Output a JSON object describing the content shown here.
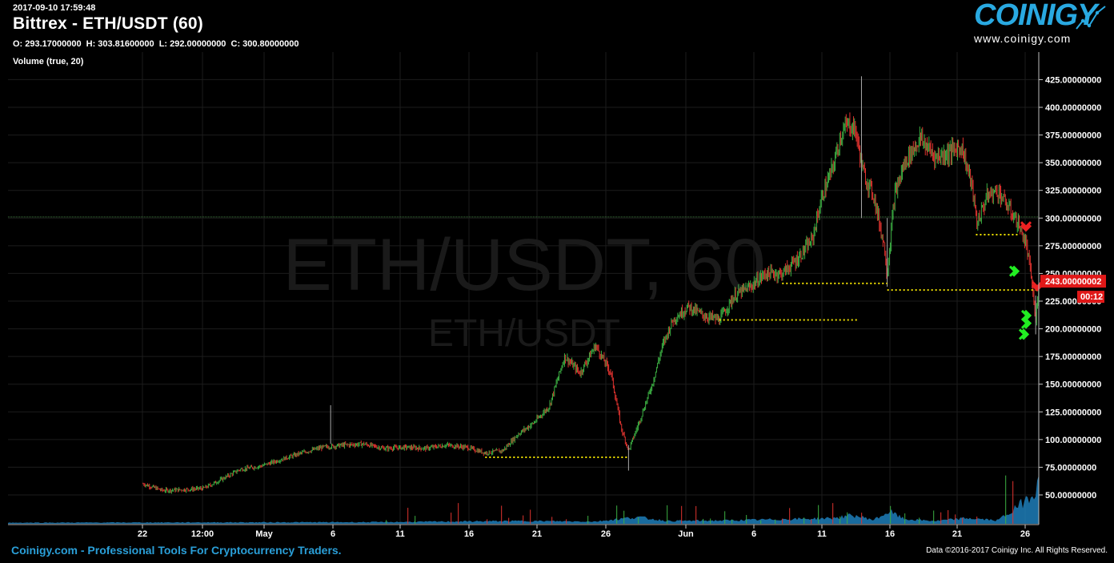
{
  "header": {
    "timestamp": "2017-09-10 17:59:48",
    "title": "Bittrex - ETH/USDT (60)",
    "ohlc": {
      "o_label": "O:",
      "o": "293.17000000",
      "h_label": "H:",
      "h": "303.81600000",
      "l_label": "L:",
      "l": "292.00000000",
      "c_label": "C:",
      "c": "300.80000000"
    },
    "indicator": "Volume (true, 20)"
  },
  "logo": {
    "word": "COINIGY",
    "url": "www.coinigy.com"
  },
  "watermark": {
    "main": "ETH/USDT, 60",
    "sub": "ETH/USDT"
  },
  "footer": {
    "left": "Coinigy.com - Professional Tools For Cryptocurrency Traders.",
    "right": "Data ©2016-2017 Coinigy Inc. All Rights Reserved."
  },
  "colors": {
    "background": "#000000",
    "up": "#3cb043",
    "down": "#e0332f",
    "volume": "#1f86c6",
    "support_line": "#f5e400",
    "last_price_label": "#e01818",
    "current_price_line": "#3c7a3c",
    "buy_marker": "#22ee22",
    "sell_marker": "#ee2222"
  },
  "chart_data": {
    "type": "candlestick",
    "x_ticks": [
      "22",
      "12:00",
      "May",
      "6",
      "11",
      "16",
      "21",
      "26",
      "Jun",
      "6",
      "11",
      "16",
      "21",
      "26"
    ],
    "y_ticks": [
      "50.00000000",
      "75.00000000",
      "100.00000000",
      "125.00000000",
      "150.00000000",
      "175.00000000",
      "200.00000000",
      "225.00000000",
      "250.00000000",
      "275.00000000",
      "300.00000000",
      "325.00000000",
      "350.00000000",
      "375.00000000",
      "400.00000000",
      "425.00000000"
    ],
    "ylim": [
      27,
      446
    ],
    "last_price_label": "243.00000002",
    "countdown_label": "00:12",
    "current_price_line": 301,
    "support_levels": [
      {
        "x_from": 0.463,
        "x_to": 0.602,
        "price": 84
      },
      {
        "x_from": 0.69,
        "x_to": 0.825,
        "price": 208
      },
      {
        "x_from": 0.751,
        "x_to": 0.853,
        "price": 241
      },
      {
        "x_from": 0.853,
        "x_to": 1.0,
        "price": 235
      },
      {
        "x_from": 0.939,
        "x_to": 0.98,
        "price": 285
      }
    ],
    "price_path": [
      [
        0.131,
        60
      ],
      [
        0.15,
        54
      ],
      [
        0.175,
        55
      ],
      [
        0.19,
        56
      ],
      [
        0.205,
        63
      ],
      [
        0.225,
        73
      ],
      [
        0.245,
        76
      ],
      [
        0.265,
        82
      ],
      [
        0.285,
        88
      ],
      [
        0.305,
        93
      ],
      [
        0.325,
        95
      ],
      [
        0.345,
        96
      ],
      [
        0.365,
        92
      ],
      [
        0.385,
        93
      ],
      [
        0.405,
        92
      ],
      [
        0.425,
        95
      ],
      [
        0.445,
        93
      ],
      [
        0.463,
        88
      ],
      [
        0.48,
        90
      ],
      [
        0.495,
        105
      ],
      [
        0.51,
        115
      ],
      [
        0.525,
        130
      ],
      [
        0.54,
        175
      ],
      [
        0.555,
        160
      ],
      [
        0.57,
        185
      ],
      [
        0.585,
        160
      ],
      [
        0.595,
        110
      ],
      [
        0.602,
        90
      ],
      [
        0.612,
        115
      ],
      [
        0.625,
        150
      ],
      [
        0.635,
        185
      ],
      [
        0.645,
        208
      ],
      [
        0.66,
        220
      ],
      [
        0.675,
        212
      ],
      [
        0.69,
        208
      ],
      [
        0.705,
        230
      ],
      [
        0.72,
        238
      ],
      [
        0.735,
        250
      ],
      [
        0.751,
        250
      ],
      [
        0.765,
        262
      ],
      [
        0.78,
        280
      ],
      [
        0.79,
        320
      ],
      [
        0.8,
        345
      ],
      [
        0.808,
        375
      ],
      [
        0.815,
        385
      ],
      [
        0.822,
        380
      ],
      [
        0.83,
        340
      ],
      [
        0.84,
        320
      ],
      [
        0.85,
        275
      ],
      [
        0.853,
        250
      ],
      [
        0.86,
        320
      ],
      [
        0.87,
        350
      ],
      [
        0.885,
        372
      ],
      [
        0.9,
        355
      ],
      [
        0.915,
        360
      ],
      [
        0.925,
        365
      ],
      [
        0.935,
        330
      ],
      [
        0.94,
        295
      ],
      [
        0.95,
        320
      ],
      [
        0.96,
        325
      ],
      [
        0.97,
        310
      ],
      [
        0.98,
        295
      ],
      [
        0.988,
        275
      ],
      [
        0.993,
        245
      ],
      [
        0.997,
        205
      ],
      [
        1.0,
        243
      ]
    ],
    "volume_profile": [
      [
        0.0,
        0.02
      ],
      [
        0.36,
        0.03
      ],
      [
        0.5,
        0.05
      ],
      [
        0.57,
        0.04
      ],
      [
        0.61,
        0.12
      ],
      [
        0.64,
        0.05
      ],
      [
        0.7,
        0.06
      ],
      [
        0.75,
        0.08
      ],
      [
        0.8,
        0.1
      ],
      [
        0.82,
        0.15
      ],
      [
        0.84,
        0.07
      ],
      [
        0.855,
        0.22
      ],
      [
        0.87,
        0.08
      ],
      [
        0.9,
        0.05
      ],
      [
        0.93,
        0.1
      ],
      [
        0.96,
        0.06
      ],
      [
        0.98,
        0.3
      ],
      [
        0.995,
        0.6
      ],
      [
        1.0,
        0.7
      ]
    ],
    "buy_markers_price": [
      252,
      212,
      205,
      195
    ],
    "sell_markers_price": [
      292,
      238
    ]
  }
}
